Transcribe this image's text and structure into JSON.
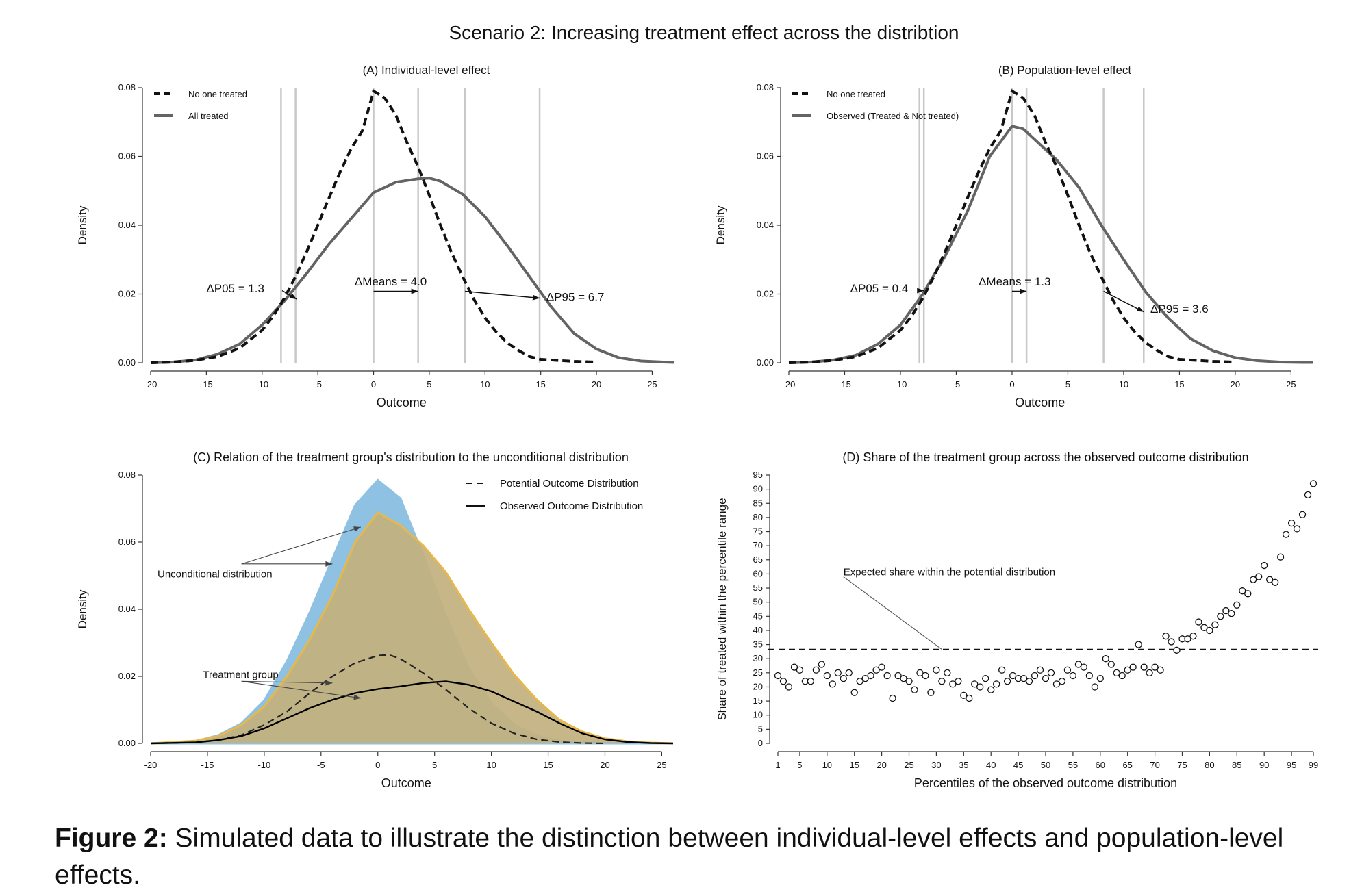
{
  "figure_title": "Scenario 2: Increasing treatment effect across the distribtion",
  "caption": {
    "label": "Figure 2:",
    "text": " Simulated data to illustrate the distinction between individual-level effects and population-level effects."
  },
  "colors": {
    "line": "#646464",
    "black": "#111111",
    "blue_fill": "#8fc1e2",
    "orange_fill": "#c3b07e",
    "orange_line": "#e8b84a",
    "guide": "#c8c8c8"
  },
  "chart_data": [
    {
      "id": "A",
      "type": "line",
      "title": "(A) Individual-level effect",
      "xlabel": "Outcome",
      "ylabel": "Density",
      "xlim": [
        -20,
        27
      ],
      "ylim": [
        0,
        0.08
      ],
      "xticks": [
        -20,
        -15,
        -10,
        -5,
        0,
        5,
        10,
        15,
        20,
        25
      ],
      "yticks": [
        0.0,
        0.02,
        0.04,
        0.06,
        0.08
      ],
      "legend_position": "top-left",
      "series": [
        {
          "name": "No one treated",
          "style": "dashed",
          "x": [
            -20,
            -18,
            -16,
            -14,
            -12,
            -10,
            -9,
            -8,
            -7,
            -6,
            -5,
            -4,
            -3,
            -2,
            -1,
            0,
            1,
            2,
            3,
            4,
            5,
            6,
            7,
            8,
            9,
            10,
            11,
            12,
            13,
            14,
            15,
            16,
            18,
            20
          ],
          "y": [
            0,
            0.0002,
            0.0007,
            0.0018,
            0.0043,
            0.0095,
            0.0136,
            0.0188,
            0.0251,
            0.0323,
            0.04,
            0.0479,
            0.0555,
            0.0623,
            0.0675,
            0.079,
            0.077,
            0.072,
            0.064,
            0.057,
            0.0487,
            0.04,
            0.032,
            0.025,
            0.0185,
            0.0131,
            0.009,
            0.0058,
            0.0036,
            0.0018,
            0.001,
            0.0008,
            0.0004,
            0.0002
          ]
        },
        {
          "name": "All treated",
          "style": "solid",
          "x": [
            -20,
            -18,
            -16,
            -14,
            -12,
            -10,
            -8,
            -6,
            -4,
            -2,
            0,
            2,
            4,
            5,
            6,
            8,
            10,
            12,
            14,
            16,
            18,
            20,
            22,
            24,
            26,
            27
          ],
          "y": [
            0,
            0.0002,
            0.0008,
            0.0025,
            0.0055,
            0.011,
            0.018,
            0.026,
            0.0345,
            0.042,
            0.0495,
            0.0525,
            0.0535,
            0.0537,
            0.0528,
            0.049,
            0.0425,
            0.034,
            0.025,
            0.016,
            0.0085,
            0.004,
            0.0015,
            0.0005,
            0.0002,
            0.0001
          ]
        }
      ],
      "guides_x": [
        -8.3,
        -7.0,
        0,
        4.0,
        8.2,
        14.9
      ],
      "annotations": [
        {
          "text": "ΔP05 = 1.3",
          "x": -15.0,
          "y": 0.0205,
          "from": [
            -8.2,
            0.021
          ],
          "to": [
            -6.9,
            0.0185
          ]
        },
        {
          "text": "ΔMeans = 4.0",
          "x": -1.7,
          "y": 0.0225,
          "from": [
            0,
            0.0208
          ],
          "to": [
            4.0,
            0.0208
          ]
        },
        {
          "text": "ΔP95 = 6.7",
          "x": 15.5,
          "y": 0.018,
          "from": [
            8.2,
            0.0208
          ],
          "to": [
            14.9,
            0.0188
          ]
        }
      ]
    },
    {
      "id": "B",
      "type": "line",
      "title": "(B) Population-level effect",
      "xlabel": "Outcome",
      "ylabel": "Density",
      "xlim": [
        -20,
        27
      ],
      "ylim": [
        0,
        0.08
      ],
      "xticks": [
        -20,
        -15,
        -10,
        -5,
        0,
        5,
        10,
        15,
        20,
        25
      ],
      "yticks": [
        0.0,
        0.02,
        0.04,
        0.06,
        0.08
      ],
      "legend_position": "top-left",
      "series": [
        {
          "name": "No one treated",
          "style": "dashed",
          "x": [
            -20,
            -18,
            -16,
            -14,
            -12,
            -10,
            -9,
            -8,
            -7,
            -6,
            -5,
            -4,
            -3,
            -2,
            -1,
            0,
            1,
            2,
            3,
            4,
            5,
            6,
            7,
            8,
            9,
            10,
            11,
            12,
            13,
            14,
            15,
            16,
            18,
            20
          ],
          "y": [
            0,
            0.0002,
            0.0007,
            0.0018,
            0.0043,
            0.0095,
            0.0136,
            0.0188,
            0.0251,
            0.0323,
            0.04,
            0.0479,
            0.0555,
            0.0623,
            0.0675,
            0.079,
            0.077,
            0.072,
            0.064,
            0.057,
            0.0487,
            0.04,
            0.032,
            0.025,
            0.0185,
            0.0131,
            0.009,
            0.0058,
            0.0036,
            0.0018,
            0.001,
            0.0008,
            0.0004,
            0.0002
          ]
        },
        {
          "name": "Observed (Treated & Not treated)",
          "style": "solid",
          "x": [
            -20,
            -18,
            -16,
            -14,
            -12,
            -10,
            -8,
            -6,
            -4,
            -2,
            0,
            1,
            2,
            4,
            6,
            8,
            10,
            12,
            14,
            16,
            18,
            20,
            22,
            24,
            26,
            27
          ],
          "y": [
            0,
            0.0002,
            0.0008,
            0.0022,
            0.0055,
            0.011,
            0.02,
            0.031,
            0.044,
            0.06,
            0.0688,
            0.068,
            0.065,
            0.059,
            0.051,
            0.04,
            0.03,
            0.0205,
            0.013,
            0.007,
            0.0035,
            0.0015,
            0.0006,
            0.0002,
            0.0001,
            0.0001
          ]
        }
      ],
      "guides_x": [
        -8.3,
        -7.9,
        0,
        1.3,
        8.2,
        11.8
      ],
      "annotations": [
        {
          "text": "ΔP05 = 0.4",
          "x": -14.5,
          "y": 0.0205,
          "from": [
            -8.3,
            0.021
          ],
          "to": [
            -7.9,
            0.021
          ]
        },
        {
          "text": "ΔMeans = 1.3",
          "x": -3.0,
          "y": 0.0225,
          "from": [
            0,
            0.0208
          ],
          "to": [
            1.3,
            0.0208
          ]
        },
        {
          "text": "ΔP95 = 3.6",
          "x": 12.4,
          "y": 0.0145,
          "from": [
            8.2,
            0.0208
          ],
          "to": [
            11.8,
            0.0148
          ]
        }
      ]
    },
    {
      "id": "C",
      "type": "area",
      "title": "(C) Relation of the treatment group's distribution to the unconditional distribution",
      "xlabel": "Outcome",
      "ylabel": "Density",
      "xlim": [
        -20,
        26
      ],
      "ylim": [
        0,
        0.08
      ],
      "xticks": [
        -20,
        -15,
        -10,
        -5,
        0,
        5,
        10,
        15,
        20,
        25
      ],
      "yticks": [
        0.0,
        0.02,
        0.04,
        0.06,
        0.08
      ],
      "legend_position": "top-right",
      "series": [
        {
          "role": "blue_area",
          "x": [
            -20,
            -16,
            -14,
            -12,
            -10,
            -8,
            -6,
            -4,
            -2,
            0,
            2,
            4,
            6,
            8,
            10,
            12,
            14,
            16,
            18,
            20,
            26
          ],
          "y": [
            0,
            0.0007,
            0.0025,
            0.006,
            0.0128,
            0.0245,
            0.039,
            0.055,
            0.071,
            0.0785,
            0.073,
            0.056,
            0.038,
            0.0225,
            0.012,
            0.0055,
            0.0022,
            0.0008,
            0.0003,
            0.0001,
            0
          ]
        },
        {
          "role": "orange_area",
          "x": [
            -20,
            -16,
            -14,
            -12,
            -10,
            -8,
            -6,
            -4,
            -2,
            0,
            2,
            4,
            6,
            8,
            10,
            12,
            14,
            16,
            18,
            20,
            22,
            24,
            26
          ],
          "y": [
            0,
            0.0008,
            0.0022,
            0.0055,
            0.011,
            0.02,
            0.031,
            0.044,
            0.06,
            0.0688,
            0.065,
            0.059,
            0.051,
            0.04,
            0.03,
            0.0205,
            0.013,
            0.007,
            0.0035,
            0.0015,
            0.0006,
            0.0002,
            0
          ]
        },
        {
          "name": "Potential Outcome Distribution",
          "style": "dashed",
          "x": [
            -20,
            -16,
            -14,
            -12,
            -10,
            -8,
            -6,
            -4,
            -2,
            0,
            1,
            2,
            4,
            6,
            8,
            10,
            12,
            14,
            16,
            18,
            20
          ],
          "y": [
            0,
            0.0003,
            0.001,
            0.0025,
            0.0055,
            0.0095,
            0.015,
            0.02,
            0.024,
            0.0262,
            0.0264,
            0.0252,
            0.021,
            0.016,
            0.0105,
            0.006,
            0.003,
            0.0012,
            0.0004,
            0.0001,
            0
          ]
        },
        {
          "name": "Observed Outcome Distribution",
          "style": "solid",
          "x": [
            -20,
            -16,
            -14,
            -12,
            -10,
            -8,
            -6,
            -4,
            -2,
            0,
            2,
            4,
            6,
            8,
            10,
            12,
            14,
            16,
            18,
            20,
            22,
            24,
            26
          ],
          "y": [
            0,
            0.0003,
            0.001,
            0.0022,
            0.0045,
            0.0075,
            0.0105,
            0.013,
            0.015,
            0.0162,
            0.017,
            0.018,
            0.0185,
            0.0175,
            0.0155,
            0.0125,
            0.0095,
            0.006,
            0.003,
            0.0012,
            0.0004,
            0.0001,
            0
          ]
        }
      ],
      "annotations": [
        {
          "text": "Unconditional distribution",
          "x": -20.0,
          "y": 0.0495,
          "lines": [
            [
              -12.0,
              0.0535,
              -1.5,
              0.0645
            ],
            [
              -12.0,
              0.0535,
              -4.0,
              0.0535
            ]
          ]
        },
        {
          "text": "Treatment group",
          "x": -16.0,
          "y": 0.0195,
          "lines": [
            [
              -12.0,
              0.0185,
              -4.0,
              0.018
            ],
            [
              -12.0,
              0.0185,
              -1.5,
              0.0135
            ]
          ]
        }
      ]
    },
    {
      "id": "D",
      "type": "scatter",
      "title": "(D) Share of the treatment group across the observed outcome distribution",
      "xlabel": "Percentiles of the observed outcome distribution",
      "ylabel": "Share of treated within the percentile range",
      "xlim": [
        1,
        99
      ],
      "ylim": [
        0,
        95
      ],
      "xticks": [
        1,
        5,
        10,
        15,
        20,
        25,
        30,
        35,
        40,
        45,
        50,
        55,
        60,
        65,
        70,
        75,
        80,
        85,
        90,
        95,
        99
      ],
      "yticks": [
        0,
        5,
        10,
        15,
        20,
        25,
        30,
        35,
        40,
        45,
        50,
        55,
        60,
        65,
        70,
        75,
        80,
        85,
        90,
        95
      ],
      "reference_line": {
        "y": 33.3,
        "style": "dashed",
        "label": "Expected share within the potential distribution",
        "label_x": 13,
        "label_y": 59,
        "pointer_to": [
          31,
          33.3
        ]
      },
      "x": [
        1,
        2,
        3,
        4,
        5,
        6,
        7,
        8,
        9,
        10,
        11,
        12,
        13,
        14,
        15,
        16,
        17,
        18,
        19,
        20,
        21,
        22,
        23,
        24,
        25,
        26,
        27,
        28,
        29,
        30,
        31,
        32,
        33,
        34,
        35,
        36,
        37,
        38,
        39,
        40,
        41,
        42,
        43,
        44,
        45,
        46,
        47,
        48,
        49,
        50,
        51,
        52,
        53,
        54,
        55,
        56,
        57,
        58,
        59,
        60,
        61,
        62,
        63,
        64,
        65,
        66,
        67,
        68,
        69,
        70,
        71,
        72,
        73,
        74,
        75,
        76,
        77,
        78,
        79,
        80,
        81,
        82,
        83,
        84,
        85,
        86,
        87,
        88,
        89,
        90,
        91,
        92,
        93,
        94,
        95,
        96,
        97,
        98,
        99
      ],
      "y": [
        24,
        22,
        20,
        27,
        26,
        22,
        22,
        26,
        28,
        24,
        21,
        25,
        23,
        25,
        18,
        22,
        23,
        24,
        26,
        27,
        24,
        16,
        24,
        23,
        22,
        19,
        25,
        24,
        18,
        26,
        22,
        25,
        21,
        22,
        17,
        16,
        21,
        20,
        23,
        19,
        21,
        26,
        22,
        24,
        23,
        23,
        22,
        24,
        26,
        23,
        25,
        21,
        22,
        26,
        24,
        28,
        27,
        24,
        20,
        23,
        30,
        28,
        25,
        24,
        26,
        27,
        35,
        27,
        25,
        27,
        26,
        38,
        36,
        33,
        37,
        37,
        38,
        43,
        41,
        40,
        42,
        45,
        47,
        46,
        49,
        54,
        53,
        58,
        59,
        63,
        58,
        57,
        66,
        74,
        78,
        76,
        81,
        88,
        92
      ]
    }
  ]
}
